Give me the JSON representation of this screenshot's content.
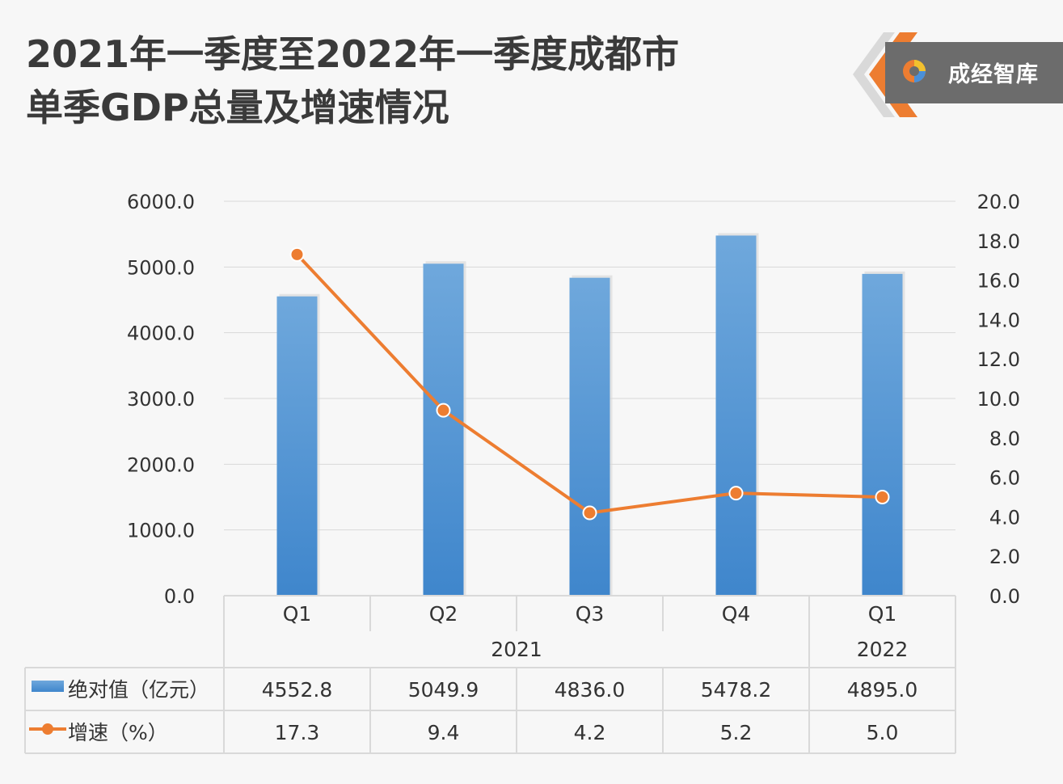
{
  "title": {
    "line1": "2021年一季度至2022年一季度成都市",
    "line2": "单季GDP总量及增速情况"
  },
  "logo": {
    "text": "成经智库",
    "icon": "brand-swirl-icon"
  },
  "colors": {
    "bar": "#4a90d9",
    "line": "#ed7d31",
    "grid": "#d9d9d9",
    "text": "#333333"
  },
  "chart_data": {
    "type": "bar",
    "categories": [
      "Q1",
      "Q2",
      "Q3",
      "Q4",
      "Q1"
    ],
    "groups": [
      {
        "label": "2021",
        "span": 4
      },
      {
        "label": "2022",
        "span": 1
      }
    ],
    "series": [
      {
        "name": "绝对值（亿元）",
        "type": "bar",
        "axis": "left",
        "values": [
          4552.8,
          5049.9,
          4836.0,
          5478.2,
          4895.0
        ]
      },
      {
        "name": "增速（%）",
        "type": "line",
        "axis": "right",
        "values": [
          17.3,
          9.4,
          4.2,
          5.2,
          5.0
        ]
      }
    ],
    "y_left": {
      "ylim": [
        0,
        6000
      ],
      "ticks": [
        "0.0",
        "1000.0",
        "2000.0",
        "3000.0",
        "4000.0",
        "5000.0",
        "6000.0"
      ]
    },
    "y_right": {
      "ylim": [
        0,
        20
      ],
      "ticks": [
        "0.0",
        "2.0",
        "4.0",
        "6.0",
        "8.0",
        "10.0",
        "12.0",
        "14.0",
        "16.0",
        "18.0",
        "20.0"
      ]
    },
    "table": {
      "rows": [
        {
          "label": "绝对值（亿元）",
          "values": [
            "4552.8",
            "5049.9",
            "4836.0",
            "5478.2",
            "4895.0"
          ]
        },
        {
          "label": "增速（%）",
          "values": [
            "17.3",
            "9.4",
            "4.2",
            "5.2",
            "5.0"
          ]
        }
      ]
    },
    "grid": true,
    "legend": "data-table"
  }
}
